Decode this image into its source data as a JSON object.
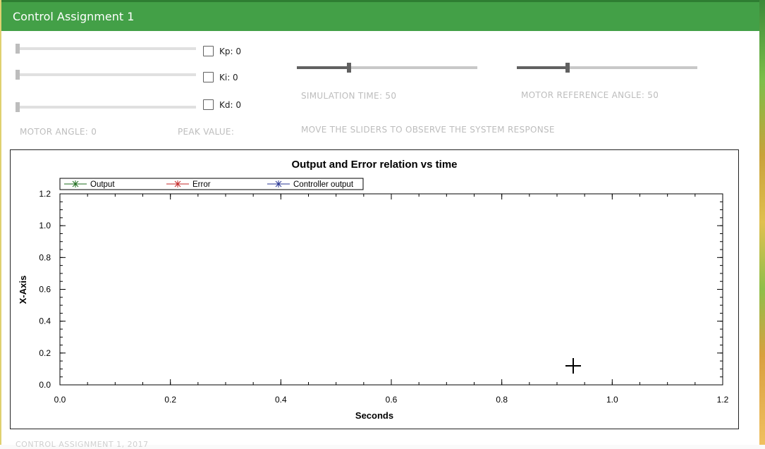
{
  "window": {
    "title": "Control Assignment 1"
  },
  "controls": {
    "kp": {
      "label": "Kp: 0",
      "value": 0
    },
    "ki": {
      "label": "Ki: 0",
      "value": 0
    },
    "kd": {
      "label": "Kd: 0",
      "value": 0
    },
    "simulation_time": {
      "label": "SIMULATION TIME: 50",
      "value": 50,
      "fraction": 0.29
    },
    "motor_reference_angle": {
      "label": "MOTOR REFERENCE ANGLE: 50",
      "value": 50,
      "fraction": 0.28
    },
    "motor_angle": "MOTOR ANGLE: 0",
    "peak_value": "PEAK VALUE:",
    "instruction": "MOVE THE SLIDERS TO OBSERVE THE SYSTEM RESPONSE"
  },
  "chart_data": {
    "type": "line",
    "title": "Output and Error relation vs time",
    "xlabel": "Seconds",
    "ylabel": "X-Axis",
    "xlim": [
      0,
      1.2
    ],
    "ylim": [
      0,
      1.2
    ],
    "xticks": [
      "0.0",
      "0.2",
      "0.4",
      "0.6",
      "0.8",
      "1.0",
      "1.2"
    ],
    "yticks": [
      "0.0",
      "0.2",
      "0.4",
      "0.6",
      "0.8",
      "1.0",
      "1.2"
    ],
    "grid": false,
    "legend_position": "top-left",
    "series": [
      {
        "name": "Output",
        "color": "#1b6b1b",
        "x": [],
        "y": []
      },
      {
        "name": "Error",
        "color": "#c62828",
        "x": [],
        "y": []
      },
      {
        "name": "Controller output",
        "color": "#283593",
        "x": [],
        "y": []
      }
    ]
  },
  "footer": "CONTROL ASSIGNMENT 1, 2017"
}
